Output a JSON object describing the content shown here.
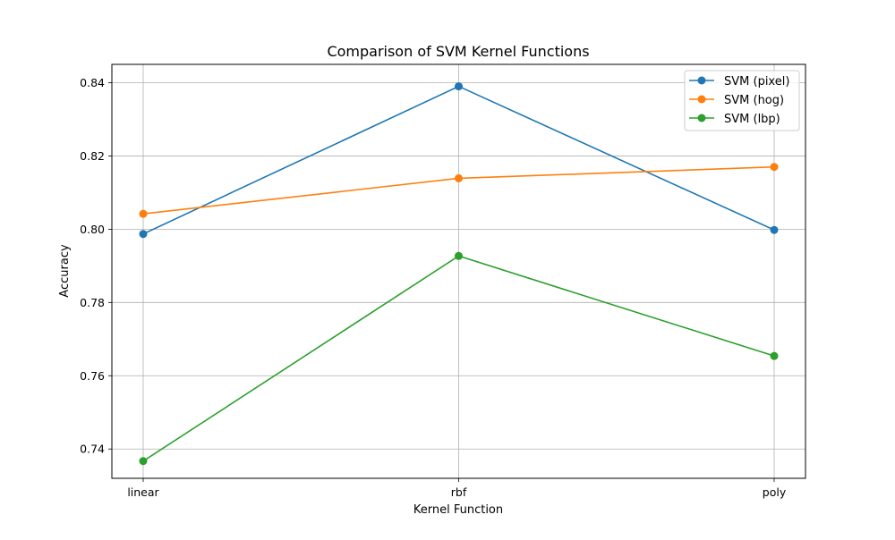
{
  "chart_data": {
    "type": "line",
    "title": "Comparison of SVM Kernel Functions",
    "xlabel": "Kernel Function",
    "ylabel": "Accuracy",
    "categories": [
      "linear",
      "rbf",
      "poly"
    ],
    "ylim": [
      0.732,
      0.845
    ],
    "yticks": [
      0.74,
      0.76,
      0.78,
      0.8,
      0.82,
      0.84
    ],
    "ytick_labels": [
      "0.74",
      "0.76",
      "0.78",
      "0.80",
      "0.82",
      "0.84"
    ],
    "grid": true,
    "legend_position": "top-right",
    "series": [
      {
        "name": "SVM (pixel)",
        "color": "#1f77b4",
        "values": [
          0.7987,
          0.839,
          0.7998
        ]
      },
      {
        "name": "SVM (hog)",
        "color": "#ff7f0e",
        "values": [
          0.8042,
          0.8139,
          0.817
        ]
      },
      {
        "name": "SVM (lbp)",
        "color": "#2ca02c",
        "values": [
          0.7367,
          0.7927,
          0.7654
        ]
      }
    ]
  }
}
